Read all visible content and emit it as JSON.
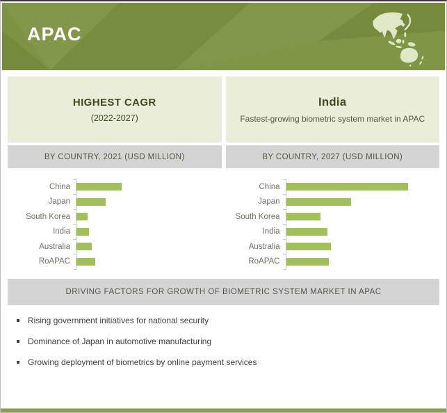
{
  "header": {
    "title": "APAC",
    "map_icon": "asia-pacific-map",
    "background_color": "#7d9242"
  },
  "highlight_cards": [
    {
      "title": "HIGHEST CAGR",
      "subtitle": "(2022-2027)"
    },
    {
      "title": "India",
      "subtitle": "Fastest-growing biometric system market in APAC"
    }
  ],
  "chart_data": [
    {
      "type": "bar",
      "orientation": "horizontal",
      "title": "BY COUNTRY, 2021 (USD MILLION)",
      "categories": [
        "China",
        "Japan",
        "South Korea",
        "India",
        "Australia",
        "RoAPAC"
      ],
      "values": [
        64,
        41,
        16,
        18,
        22,
        27
      ],
      "units": "relative bar length (numeric axis not labeled in image)",
      "xlim": [
        0,
        205
      ],
      "bar_color": "#a2c05a",
      "grid": false,
      "legend": "none"
    },
    {
      "type": "bar",
      "orientation": "horizontal",
      "title": "BY COUNTRY, 2027 (USD MILLION)",
      "categories": [
        "China",
        "Japan",
        "South Korea",
        "India",
        "Australia",
        "RoAPAC"
      ],
      "values": [
        178,
        95,
        50,
        60,
        66,
        62
      ],
      "units": "relative bar length (numeric axis not labeled in image)",
      "xlim": [
        0,
        224
      ],
      "bar_color": "#a2c05a",
      "grid": false,
      "legend": "none"
    }
  ],
  "driving_factors": {
    "title": "DRIVING FACTORS FOR GROWTH OF BIOMETRIC SYSTEM MARKET IN APAC",
    "items": [
      "Rising government initiatives for national security",
      "Dominance of Japan in automotive manufacturing",
      "Growing deployment of biometrics by online payment services"
    ]
  },
  "colors": {
    "header_green": "#7d9242",
    "pale_panel": "#e9edda",
    "gray_band": "#d4d4d4",
    "bar_green": "#a2c05a",
    "dark_green_text": "#3c4b1f",
    "band_text": "#55553e",
    "axis_label_text": "#72715f",
    "body_text": "#3e3e3e",
    "map_fill": "#dfe8c6",
    "bottom_strip": "#8d9d53"
  }
}
